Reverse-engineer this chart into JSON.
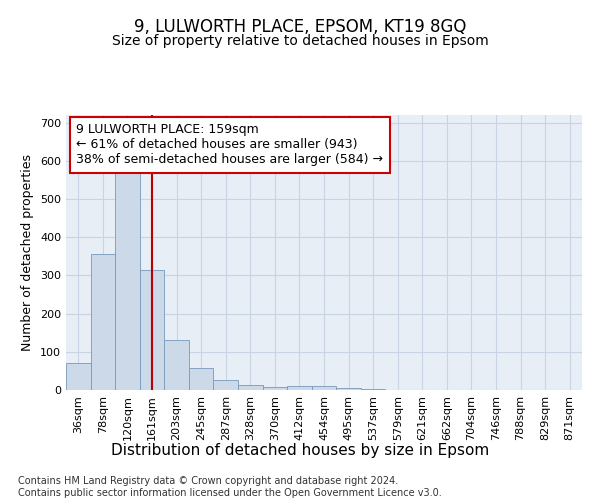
{
  "title": "9, LULWORTH PLACE, EPSOM, KT19 8GQ",
  "subtitle": "Size of property relative to detached houses in Epsom",
  "xlabel": "Distribution of detached houses by size in Epsom",
  "ylabel": "Number of detached properties",
  "bar_values": [
    70,
    355,
    570,
    315,
    130,
    57,
    25,
    14,
    8,
    10,
    10,
    5,
    2,
    1,
    0,
    0,
    0,
    0,
    0,
    0,
    0
  ],
  "bin_labels": [
    "36sqm",
    "78sqm",
    "120sqm",
    "161sqm",
    "203sqm",
    "245sqm",
    "287sqm",
    "328sqm",
    "370sqm",
    "412sqm",
    "454sqm",
    "495sqm",
    "537sqm",
    "579sqm",
    "621sqm",
    "662sqm",
    "704sqm",
    "746sqm",
    "788sqm",
    "829sqm",
    "871sqm"
  ],
  "bar_color": "#ccd9e8",
  "bar_edge_color": "#7799bb",
  "grid_color": "#c8d4e4",
  "background_color": "#e8eef6",
  "vline_x": 3.0,
  "vline_color": "#bb0000",
  "annotation_text": "9 LULWORTH PLACE: 159sqm\n← 61% of detached houses are smaller (943)\n38% of semi-detached houses are larger (584) →",
  "annotation_box_color": "#ffffff",
  "annotation_box_edge": "#cc0000",
  "footer_text": "Contains HM Land Registry data © Crown copyright and database right 2024.\nContains public sector information licensed under the Open Government Licence v3.0.",
  "ylim": [
    0,
    720
  ],
  "yticks": [
    0,
    100,
    200,
    300,
    400,
    500,
    600,
    700
  ],
  "title_fontsize": 12,
  "subtitle_fontsize": 10,
  "xlabel_fontsize": 11,
  "ylabel_fontsize": 9,
  "tick_fontsize": 8,
  "annotation_fontsize": 9,
  "footer_fontsize": 7
}
